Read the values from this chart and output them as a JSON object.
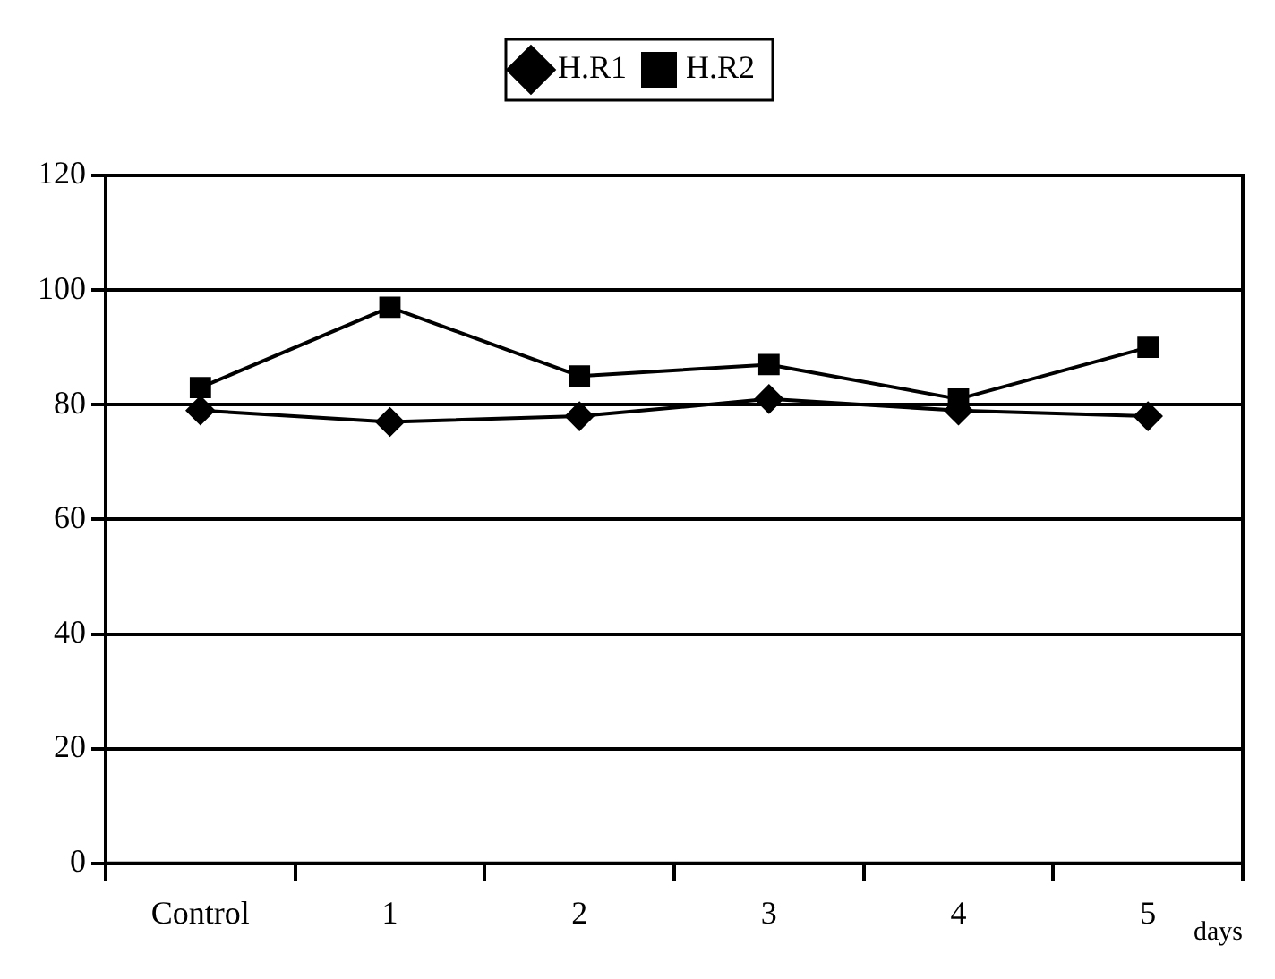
{
  "chart_data": {
    "type": "line",
    "xlabel": "days",
    "categories": [
      "Control",
      "1",
      "2",
      "3",
      "4",
      "5"
    ],
    "series": [
      {
        "name": "H.R1",
        "color": "#000000",
        "marker": "diamond",
        "values": [
          79,
          77,
          78,
          81,
          79,
          78
        ]
      },
      {
        "name": "H.R2",
        "color": "#000000",
        "marker": "square",
        "values": [
          83,
          97,
          85,
          87,
          81,
          90
        ]
      }
    ],
    "ylim": [
      0,
      120
    ],
    "yticks": [
      0,
      20,
      40,
      60,
      80,
      100,
      120
    ],
    "grid": "y",
    "legend": "top",
    "line_style": "solid"
  }
}
